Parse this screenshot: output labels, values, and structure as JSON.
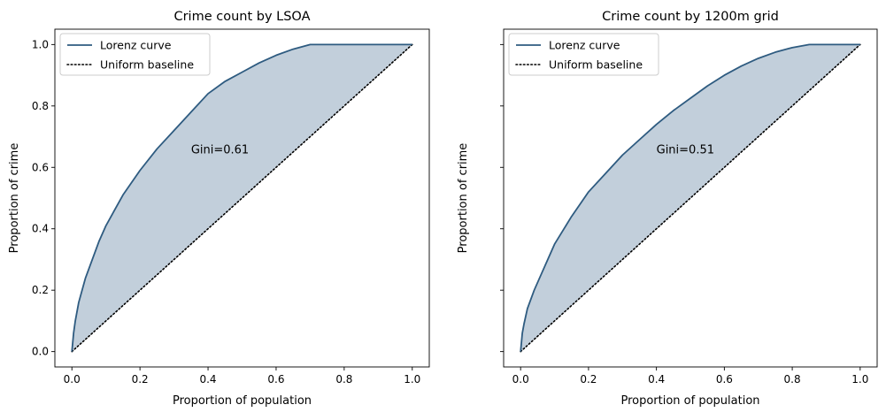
{
  "chart_data": [
    {
      "type": "line",
      "title": "Crime count by LSOA",
      "xlabel": "Proportion of population",
      "ylabel": "Proportion of crime",
      "xlim": [
        -0.05,
        1.05
      ],
      "ylim": [
        -0.05,
        1.05
      ],
      "xticks": [
        "0.0",
        "0.2",
        "0.4",
        "0.6",
        "0.8",
        "1.0"
      ],
      "yticks": [
        "0.0",
        "0.2",
        "0.4",
        "0.6",
        "0.8",
        "1.0"
      ],
      "yticks_labeled": true,
      "grid": false,
      "legend_position": "top-left",
      "fill_between_series": true,
      "annotation": {
        "text": "Gini=0.61",
        "x": 0.35,
        "y": 0.66
      },
      "series": [
        {
          "name": "Lorenz curve",
          "style": "solid",
          "x": [
            0,
            0.005,
            0.01,
            0.02,
            0.04,
            0.06,
            0.08,
            0.1,
            0.15,
            0.2,
            0.25,
            0.3,
            0.35,
            0.4,
            0.45,
            0.5,
            0.55,
            0.6,
            0.65,
            0.7,
            0.75,
            0.8,
            0.85,
            0.9,
            0.95,
            1.0
          ],
          "y": [
            0,
            0.06,
            0.1,
            0.16,
            0.24,
            0.3,
            0.36,
            0.41,
            0.51,
            0.59,
            0.66,
            0.72,
            0.78,
            0.84,
            0.88,
            0.91,
            0.94,
            0.965,
            0.985,
            1.0,
            1.0,
            1.0,
            1.0,
            1.0,
            1.0,
            1.0
          ]
        },
        {
          "name": "Uniform baseline",
          "style": "dotted",
          "x": [
            0,
            1
          ],
          "y": [
            0,
            1
          ]
        }
      ]
    },
    {
      "type": "line",
      "title": "Crime count by 1200m grid",
      "xlabel": "Proportion of population",
      "ylabel": "Proportion of crime",
      "xlim": [
        -0.05,
        1.05
      ],
      "ylim": [
        -0.05,
        1.05
      ],
      "xticks": [
        "0.0",
        "0.2",
        "0.4",
        "0.6",
        "0.8",
        "1.0"
      ],
      "yticks": [
        "0.0",
        "0.2",
        "0.4",
        "0.6",
        "0.8",
        "1.0"
      ],
      "yticks_labeled": false,
      "grid": false,
      "legend_position": "top-left",
      "fill_between_series": true,
      "annotation": {
        "text": "Gini=0.51",
        "x": 0.4,
        "y": 0.66
      },
      "series": [
        {
          "name": "Lorenz curve",
          "style": "solid",
          "x": [
            0,
            0.005,
            0.01,
            0.02,
            0.04,
            0.06,
            0.08,
            0.1,
            0.15,
            0.2,
            0.25,
            0.3,
            0.35,
            0.4,
            0.45,
            0.5,
            0.55,
            0.6,
            0.65,
            0.7,
            0.75,
            0.8,
            0.85,
            0.9,
            0.95,
            1.0
          ],
          "y": [
            0,
            0.06,
            0.09,
            0.14,
            0.2,
            0.25,
            0.3,
            0.35,
            0.44,
            0.52,
            0.58,
            0.64,
            0.69,
            0.74,
            0.785,
            0.825,
            0.865,
            0.9,
            0.93,
            0.955,
            0.975,
            0.99,
            1.0,
            1.0,
            1.0,
            1.0
          ]
        },
        {
          "name": "Uniform baseline",
          "style": "dotted",
          "x": [
            0,
            1
          ],
          "y": [
            0,
            1
          ]
        }
      ]
    }
  ],
  "colors": {
    "line": "#2e5b80",
    "fill": "#c2cfdb",
    "baseline": "#000000",
    "frame": "#000000",
    "legend_border": "#cccccc"
  }
}
